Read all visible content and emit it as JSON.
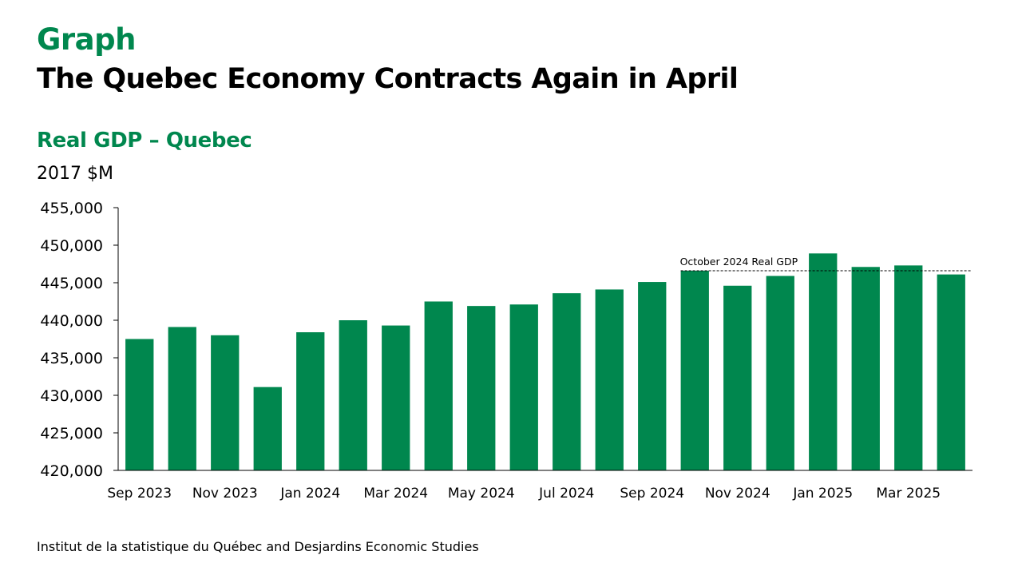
{
  "heading": {
    "label": "Graph",
    "title": "The Quebec Economy Contracts Again in April"
  },
  "source": "Institut de la statistique du Québec and Desjardins Economic Studies",
  "colors": {
    "accent": "#00874E",
    "bar": "#00874E",
    "text": "#000000"
  },
  "chart_data": {
    "type": "bar",
    "title": "Real GDP – Quebec",
    "ylabel": "2017 $M",
    "xlabel": "",
    "ylim": [
      420000,
      455000
    ],
    "yticks": [
      420000,
      425000,
      430000,
      435000,
      440000,
      445000,
      450000,
      455000
    ],
    "ytick_labels": [
      "420,000",
      "425,000",
      "430,000",
      "435,000",
      "440,000",
      "445,000",
      "450,000",
      "455,000"
    ],
    "grid": false,
    "categories": [
      "Sep 2023",
      "Oct 2023",
      "Nov 2023",
      "Dec 2023",
      "Jan 2024",
      "Feb 2024",
      "Mar 2024",
      "Apr 2024",
      "May 2024",
      "Jun 2024",
      "Jul 2024",
      "Aug 2024",
      "Sep 2024",
      "Oct 2024",
      "Nov 2024",
      "Dec 2024",
      "Jan 2025",
      "Feb 2025",
      "Mar 2025",
      "Apr 2025"
    ],
    "x_tick_labels": [
      "Sep 2023",
      "Nov 2023",
      "Jan 2024",
      "Mar 2024",
      "May 2024",
      "Jul 2024",
      "Sep 2024",
      "Nov 2024",
      "Jan 2025",
      "Mar 2025"
    ],
    "values": [
      437500,
      439100,
      438000,
      431100,
      438400,
      440000,
      439300,
      442500,
      441900,
      442100,
      443600,
      444100,
      445100,
      446600,
      444600,
      445900,
      448900,
      447100,
      447300,
      446100
    ],
    "reference_line": {
      "label": "October 2024 Real GDP",
      "value": 446600,
      "start_category": "Oct 2024",
      "style": "dashed"
    }
  }
}
